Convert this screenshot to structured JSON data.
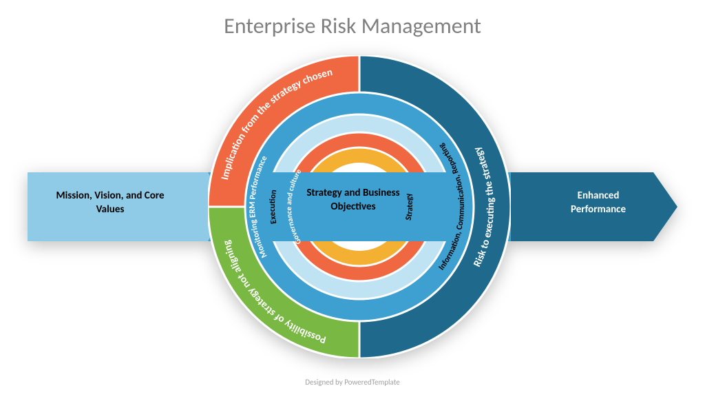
{
  "title": "Enterprise Risk Management",
  "footer": "Designed by PoweredTemplate",
  "background": "#ffffff",
  "title_color": "#808080",
  "title_fontsize": 32,
  "left_arrow": {
    "label": "Mission, Vision, and Core Values",
    "fill": "#8fcae7",
    "label_color": "#000000"
  },
  "right_arrow": {
    "label": "Enhanced Performance",
    "fill": "#1f6a8c",
    "label_color": "#ffffff"
  },
  "center": {
    "label": "Strategy and Business Objectives",
    "fill": "#3ea0d1",
    "label_color": "#000000"
  },
  "rings": [
    {
      "name": "outer",
      "outer_radius": 220,
      "inner_radius": 166,
      "segments": [
        {
          "label": "Possibility of strategy not aligning",
          "start_deg": 180,
          "end_deg": 270,
          "fill": "#78b843",
          "text_color": "#ffffff"
        },
        {
          "label": "Implication from the strategy chosen",
          "start_deg": 270,
          "end_deg": 360,
          "fill": "#ef6842",
          "text_color": "#ffffff"
        },
        {
          "label": "Risk to executing the strategy",
          "start_deg": 0,
          "end_deg": 180,
          "fill": "#1f6a8c",
          "text_color": "#ffffff"
        }
      ],
      "fontsize": 15,
      "fontweight": 700
    },
    {
      "name": "ring2",
      "outer_radius": 166,
      "inner_radius": 134,
      "fill": "#3ea0d1",
      "labels": [
        {
          "text": "Monitoring ERM Performance",
          "deg_center": 270,
          "span_deg": 120,
          "text_color": "#ffffff",
          "side": "top"
        },
        {
          "text": "Information, Communication, Reporting",
          "deg_center": 90,
          "span_deg": 130,
          "text_color": "#000000",
          "side": "bottom"
        }
      ],
      "fontsize": 12,
      "fontweight": 700
    },
    {
      "name": "ring3",
      "outer_radius": 134,
      "inner_radius": 108,
      "fill": "#bfe3f3",
      "labels": [
        {
          "text": "Execution",
          "deg_center": 270,
          "span_deg": 60,
          "text_color": "#000000",
          "side": "top"
        }
      ],
      "fontsize": 12,
      "fontweight": 700
    },
    {
      "name": "ring4",
      "outer_radius": 108,
      "inner_radius": 86,
      "fill": "#ef6842",
      "labels": [
        {
          "text": "Governance and culture",
          "deg_center": 270,
          "span_deg": 110,
          "text_color": "#ffffff",
          "side": "top"
        }
      ],
      "fontsize": 11,
      "fontweight": 700
    },
    {
      "name": "ring5",
      "outer_radius": 86,
      "inner_radius": 64,
      "fill": "#f3b032",
      "labels": [
        {
          "text": "Strategy",
          "deg_center": 90,
          "span_deg": 60,
          "text_color": "#000000",
          "side": "bottom"
        }
      ],
      "fontsize": 12,
      "fontweight": 700
    },
    {
      "name": "inner-hole",
      "outer_radius": 64,
      "inner_radius": 0,
      "fill": "#ffffff",
      "labels": []
    }
  ],
  "center_band": {
    "fill": "#3ea0d1",
    "height": 100
  },
  "gap_deg": 2,
  "stroke": "#ffffff",
  "stroke_width": 3
}
